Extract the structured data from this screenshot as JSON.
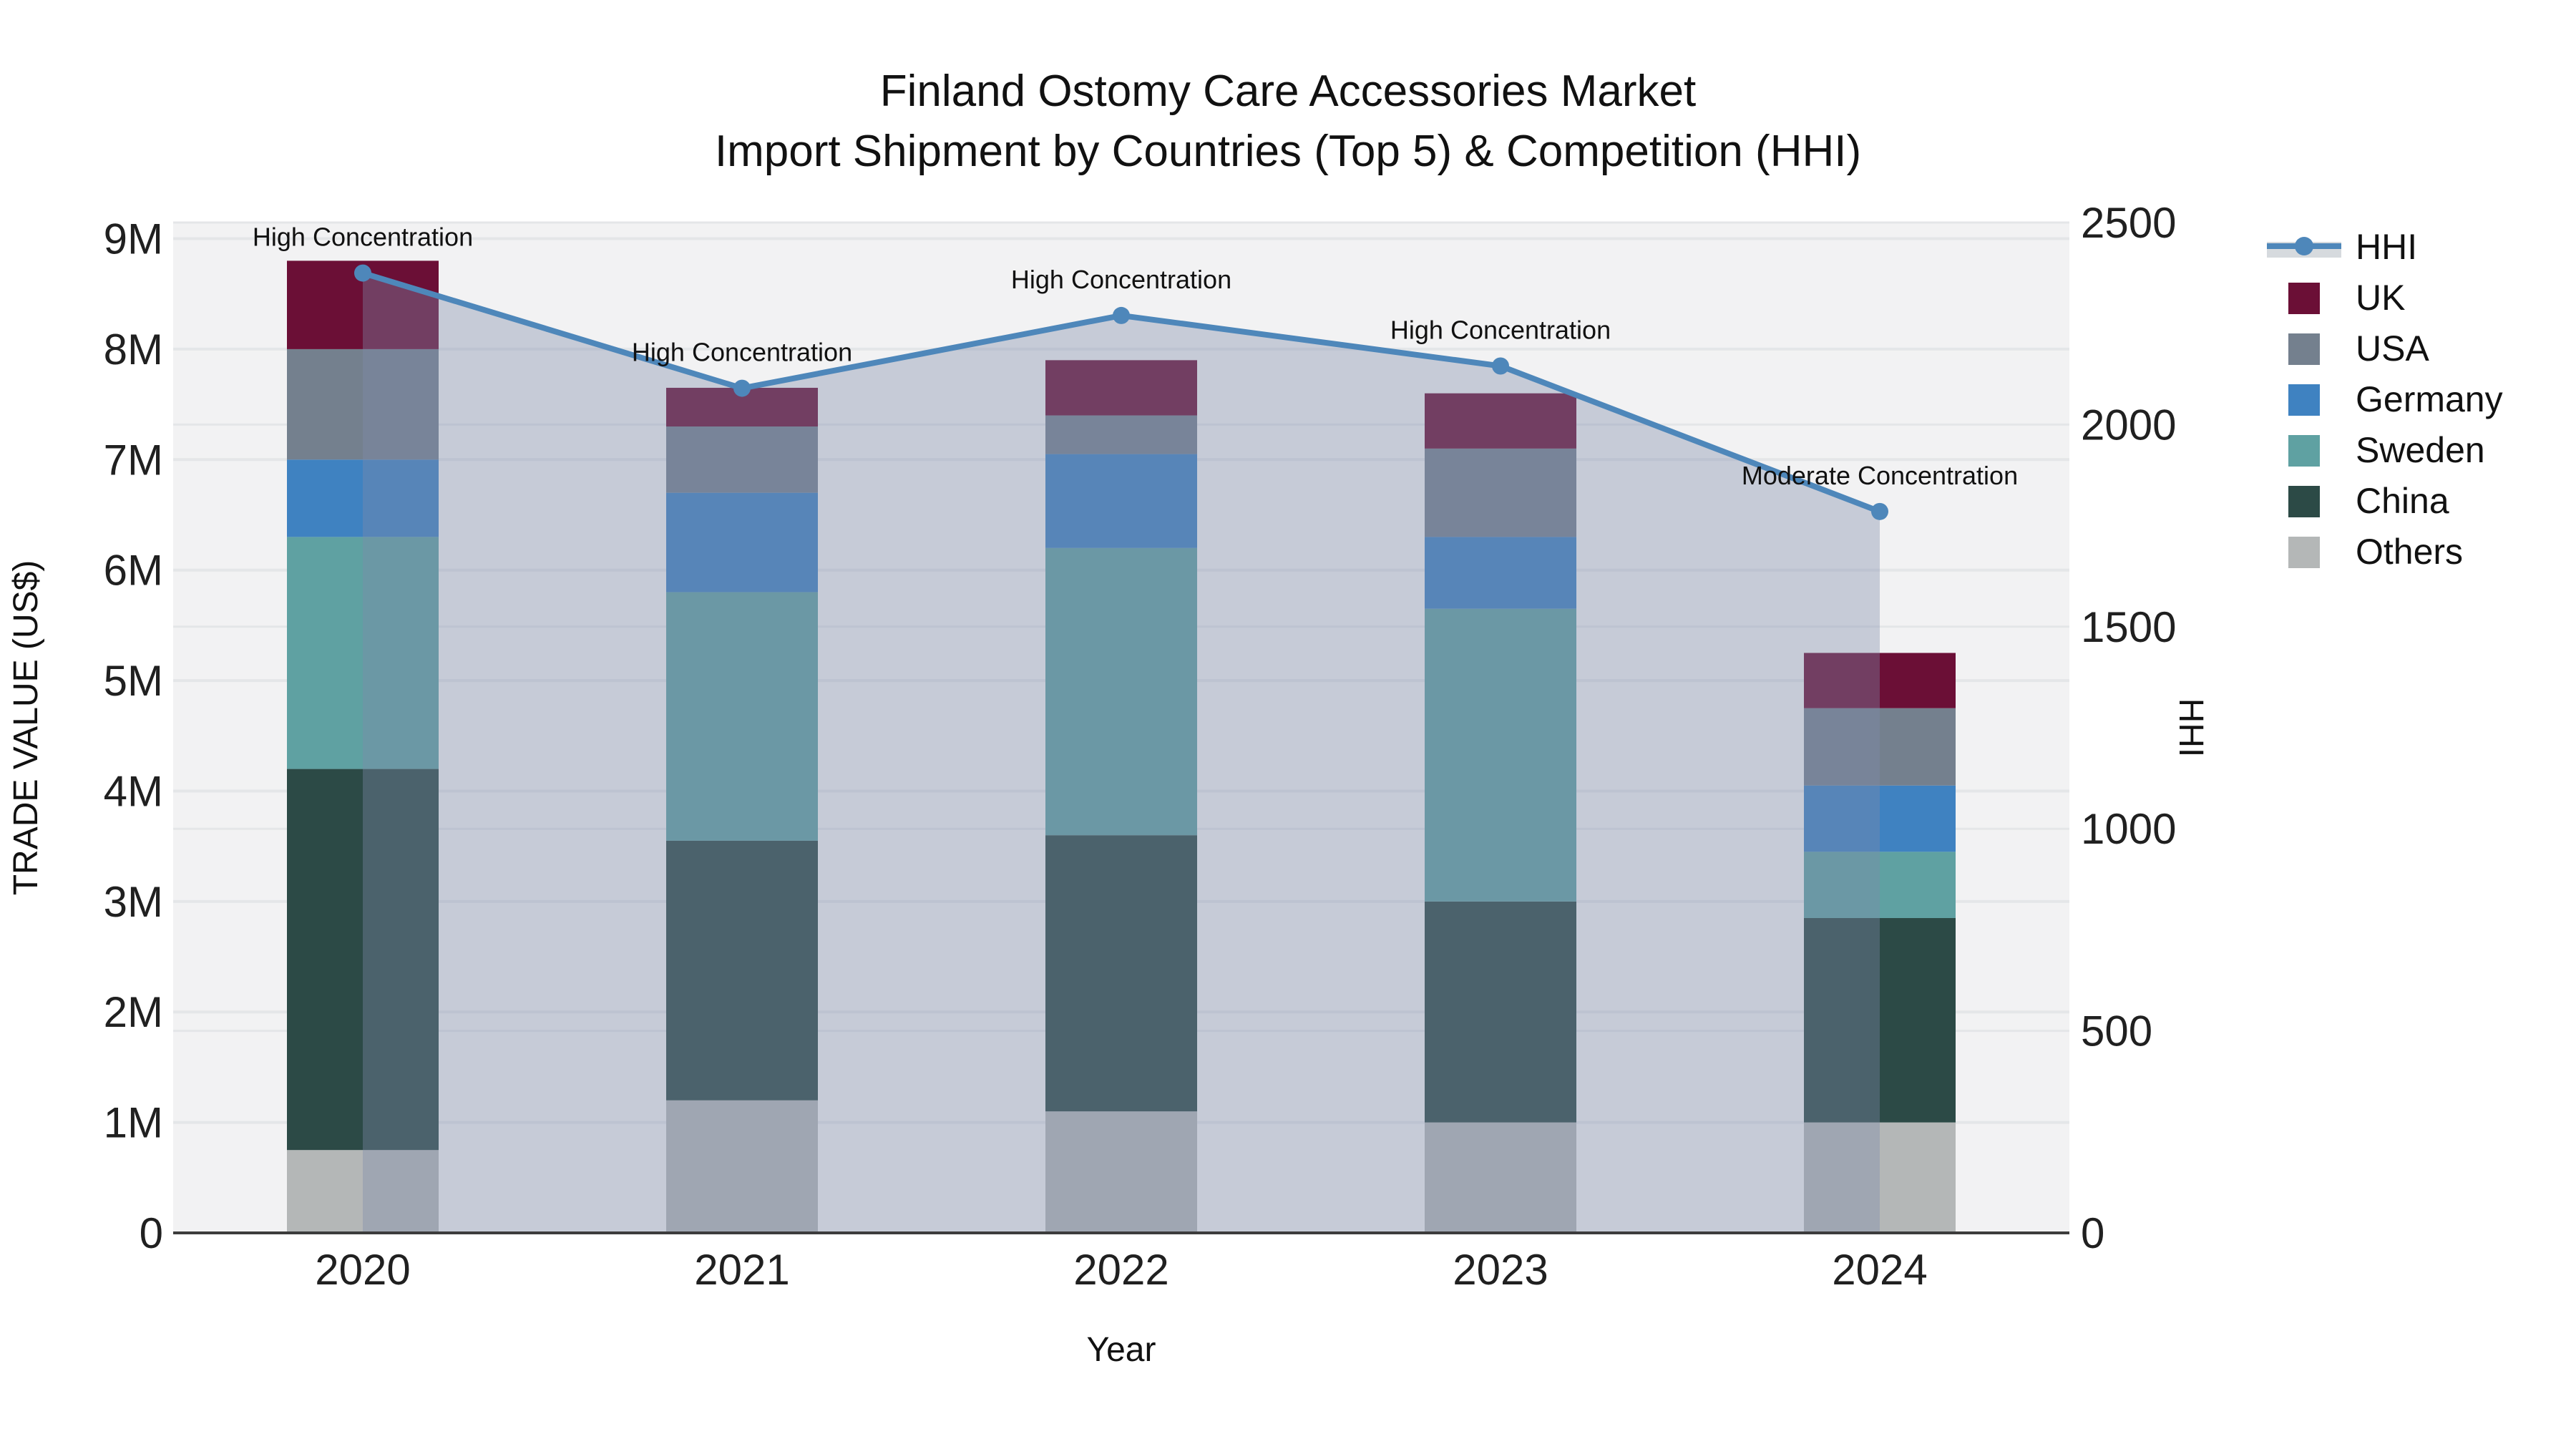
{
  "title": {
    "line1": "Finland Ostomy Care Accessories Market",
    "line2": "Import Shipment by Countries (Top 5) & Competition (HHI)"
  },
  "axes": {
    "x": {
      "title": "Year",
      "tick_labels": [
        "2020",
        "2021",
        "2022",
        "2023",
        "2024"
      ]
    },
    "y_left": {
      "title": "TRADE VALUE (US$)",
      "tick_labels": [
        "0",
        "1M",
        "2M",
        "3M",
        "4M",
        "5M",
        "6M",
        "7M",
        "8M",
        "9M"
      ],
      "tick_values": [
        0,
        1000000,
        2000000,
        3000000,
        4000000,
        5000000,
        6000000,
        7000000,
        8000000,
        9000000
      ],
      "max_value": 9146000
    },
    "y_right": {
      "title": "HHI",
      "tick_labels": [
        "0",
        "500",
        "1000",
        "1500",
        "2000",
        "2500"
      ],
      "tick_values": [
        0,
        500,
        1000,
        1500,
        2000,
        2500
      ],
      "max_value": 2500
    }
  },
  "chart_data": {
    "type": "bar+line",
    "categories": [
      "2020",
      "2021",
      "2022",
      "2023",
      "2024"
    ],
    "stack_order_note": "bottom to top",
    "series": [
      {
        "name": "Others",
        "color": "#b4b7b7",
        "values": [
          750000,
          1200000,
          1100000,
          1000000,
          1000000
        ]
      },
      {
        "name": "China",
        "color": "#2c4a46",
        "values": [
          3450000,
          2350000,
          2500000,
          2000000,
          1850000
        ]
      },
      {
        "name": "Sweden",
        "color": "#5fa1a2",
        "values": [
          2100000,
          2250000,
          2600000,
          2650000,
          600000
        ]
      },
      {
        "name": "Germany",
        "color": "#3f82c1",
        "values": [
          700000,
          900000,
          850000,
          650000,
          600000
        ]
      },
      {
        "name": "USA",
        "color": "#74808e",
        "values": [
          1000000,
          600000,
          350000,
          800000,
          700000
        ]
      },
      {
        "name": "UK",
        "color": "#6b0f36",
        "values": [
          800000,
          350000,
          500000,
          500000,
          500000
        ]
      }
    ],
    "totals": [
      8800000,
      7650000,
      7900000,
      7600000,
      5250000
    ],
    "hhi": {
      "name": "HHI",
      "line_color": "#4e87ba",
      "fill_color": "rgba(125,140,170,0.38)",
      "values": [
        2375,
        2090,
        2270,
        2145,
        1785
      ]
    },
    "annotations": [
      "High Concentration",
      "High Concentration",
      "High Concentration",
      "High Concentration",
      "Moderate Concentration"
    ],
    "legend_position": "right",
    "grid": true
  },
  "legend": {
    "items": [
      "HHI",
      "UK",
      "USA",
      "Germany",
      "Sweden",
      "China",
      "Others"
    ]
  },
  "colors": {
    "plot_background": "#f2f2f3",
    "paper_background": "#ffffff",
    "gridline": "#e4e6e8",
    "baseline": "#3c3c3c",
    "hhi_legend_band": "#d6dade"
  }
}
